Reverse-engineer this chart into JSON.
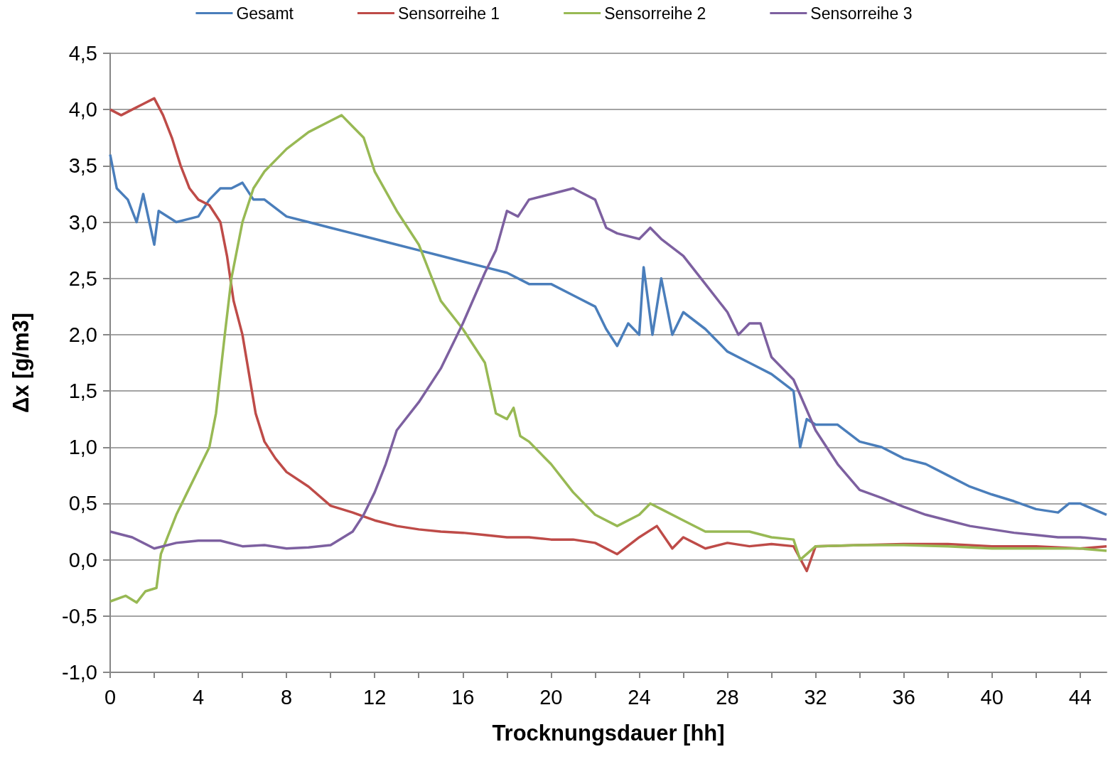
{
  "chart_data": {
    "type": "line",
    "xlabel": "Trocknungsdauer [hh]",
    "ylabel": "Δx [g/m3]",
    "xlim": [
      0,
      45.2
    ],
    "ylim": [
      -1,
      4.5
    ],
    "xticks": [
      0,
      {
        "value": 2,
        "label": null
      },
      4,
      {
        "value": 6,
        "label": null
      },
      8,
      {
        "value": 10,
        "label": null
      },
      12,
      {
        "value": 14,
        "label": null
      },
      16,
      {
        "value": 18,
        "label": null
      },
      20,
      {
        "value": 22,
        "label": null
      },
      24,
      {
        "value": 26,
        "label": null
      },
      28,
      {
        "value": 30,
        "label": null
      },
      32,
      {
        "value": 34,
        "label": null
      },
      36,
      {
        "value": 38,
        "label": null
      },
      40,
      {
        "value": 42,
        "label": null
      },
      44
    ],
    "yticks": [
      {
        "value": -1,
        "label": "-1,0"
      },
      {
        "value": -0.5,
        "label": "-0,5"
      },
      {
        "value": 0,
        "label": "0,0"
      },
      {
        "value": 0.5,
        "label": "0,5"
      },
      {
        "value": 1,
        "label": "1,0"
      },
      {
        "value": 1.5,
        "label": "1,5"
      },
      {
        "value": 2,
        "label": "2,0"
      },
      {
        "value": 2.5,
        "label": "2,5"
      },
      {
        "value": 3,
        "label": "3,0"
      },
      {
        "value": 3.5,
        "label": "3,5"
      },
      {
        "value": 4,
        "label": "4,0"
      },
      {
        "value": 4.5,
        "label": "4,5"
      }
    ],
    "grid": "y",
    "legend": "top",
    "marker": "none",
    "line_style": "solid",
    "series": [
      {
        "name": "Gesamt",
        "color": "#4a7ebb",
        "x": [
          0,
          0.3,
          0.8,
          1.2,
          1.5,
          2,
          2.2,
          3,
          4,
          4.5,
          5,
          5.5,
          6,
          6.5,
          7,
          8,
          9,
          10,
          11,
          12,
          13,
          14,
          15,
          16,
          17,
          18,
          19,
          20,
          21,
          22,
          22.5,
          23,
          23.5,
          24,
          24.2,
          24.6,
          25,
          25.5,
          26,
          27,
          28,
          29,
          30,
          31,
          31.3,
          31.6,
          32,
          33,
          34,
          35,
          36,
          37,
          38,
          39,
          40,
          41,
          42,
          43,
          43.5,
          44,
          45.2
        ],
        "values": [
          3.6,
          3.3,
          3.2,
          3.0,
          3.25,
          2.8,
          3.1,
          3.0,
          3.05,
          3.2,
          3.3,
          3.3,
          3.35,
          3.2,
          3.2,
          3.05,
          3.0,
          2.95,
          2.9,
          2.85,
          2.8,
          2.75,
          2.7,
          2.65,
          2.6,
          2.55,
          2.45,
          2.45,
          2.35,
          2.25,
          2.05,
          1.9,
          2.1,
          2.0,
          2.6,
          2.0,
          2.5,
          2.0,
          2.2,
          2.05,
          1.85,
          1.75,
          1.65,
          1.5,
          1.0,
          1.25,
          1.2,
          1.2,
          1.05,
          1.0,
          0.9,
          0.85,
          0.75,
          0.65,
          0.58,
          0.52,
          0.45,
          0.42,
          0.5,
          0.5,
          0.4
        ]
      },
      {
        "name": "Sensorreihe 1",
        "color": "#be4b48",
        "x": [
          0,
          0.5,
          1,
          1.5,
          2,
          2.4,
          2.8,
          3.2,
          3.6,
          4,
          4.5,
          5,
          5.3,
          5.6,
          6,
          6.3,
          6.6,
          7,
          7.5,
          8,
          9,
          10,
          11,
          12,
          13,
          14,
          15,
          16,
          17,
          18,
          19,
          20,
          21,
          22,
          23,
          24,
          24.8,
          25.5,
          26,
          27,
          28,
          29,
          30,
          31,
          31.6,
          32,
          34,
          36,
          38,
          40,
          42,
          44,
          45.2
        ],
        "values": [
          4.0,
          3.95,
          4.0,
          4.05,
          4.1,
          3.95,
          3.75,
          3.5,
          3.3,
          3.2,
          3.15,
          3.0,
          2.7,
          2.3,
          2.0,
          1.65,
          1.3,
          1.05,
          0.9,
          0.78,
          0.65,
          0.48,
          0.42,
          0.35,
          0.3,
          0.27,
          0.25,
          0.24,
          0.22,
          0.2,
          0.2,
          0.18,
          0.18,
          0.15,
          0.05,
          0.2,
          0.3,
          0.1,
          0.2,
          0.1,
          0.15,
          0.12,
          0.14,
          0.12,
          -0.1,
          0.12,
          0.13,
          0.14,
          0.14,
          0.12,
          0.12,
          0.1,
          0.12
        ]
      },
      {
        "name": "Sensorreihe 2",
        "color": "#98b954",
        "x": [
          0,
          0.7,
          1.2,
          1.6,
          2.1,
          2.3,
          2.6,
          3,
          3.5,
          4,
          4.5,
          4.8,
          5.2,
          5.5,
          6,
          6.5,
          7,
          8,
          9,
          10,
          10.5,
          11,
          11.5,
          12,
          13,
          14,
          15,
          16,
          17,
          17.5,
          18,
          18.3,
          18.6,
          19,
          20,
          21,
          22,
          23,
          24,
          24.5,
          25,
          26,
          27,
          28,
          29,
          30,
          31,
          31.3,
          32,
          34,
          36,
          38,
          40,
          42,
          44,
          45.2
        ],
        "values": [
          -0.37,
          -0.32,
          -0.38,
          -0.28,
          -0.25,
          0.05,
          0.2,
          0.4,
          0.6,
          0.8,
          1.0,
          1.3,
          2.0,
          2.5,
          3.0,
          3.3,
          3.45,
          3.65,
          3.8,
          3.9,
          3.95,
          3.85,
          3.75,
          3.45,
          3.1,
          2.8,
          2.3,
          2.05,
          1.75,
          1.3,
          1.25,
          1.35,
          1.1,
          1.05,
          0.85,
          0.6,
          0.4,
          0.3,
          0.4,
          0.5,
          0.45,
          0.35,
          0.25,
          0.25,
          0.25,
          0.2,
          0.18,
          0.0,
          0.12,
          0.13,
          0.13,
          0.12,
          0.1,
          0.1,
          0.1,
          0.08
        ]
      },
      {
        "name": "Sensorreihe 3",
        "color": "#7d60a0",
        "x": [
          0,
          1,
          2,
          3,
          4,
          5,
          6,
          7,
          8,
          9,
          10,
          11,
          11.5,
          12,
          12.5,
          13,
          14,
          15,
          16,
          17,
          17.5,
          18,
          18.5,
          19,
          20,
          21,
          22,
          22.5,
          23,
          24,
          24.5,
          25,
          26,
          27,
          28,
          28.5,
          29,
          29.5,
          30,
          31,
          32,
          33,
          34,
          35,
          36,
          37,
          38,
          39,
          40,
          41,
          42,
          43,
          44,
          45.2
        ],
        "values": [
          0.25,
          0.2,
          0.1,
          0.15,
          0.17,
          0.17,
          0.12,
          0.13,
          0.1,
          0.11,
          0.13,
          0.25,
          0.4,
          0.6,
          0.85,
          1.15,
          1.4,
          1.7,
          2.1,
          2.55,
          2.75,
          3.1,
          3.05,
          3.2,
          3.25,
          3.3,
          3.2,
          2.95,
          2.9,
          2.85,
          2.95,
          2.85,
          2.7,
          2.45,
          2.2,
          2.0,
          2.1,
          2.1,
          1.8,
          1.6,
          1.15,
          0.85,
          0.62,
          0.55,
          0.47,
          0.4,
          0.35,
          0.3,
          0.27,
          0.24,
          0.22,
          0.2,
          0.2,
          0.18
        ]
      }
    ]
  }
}
